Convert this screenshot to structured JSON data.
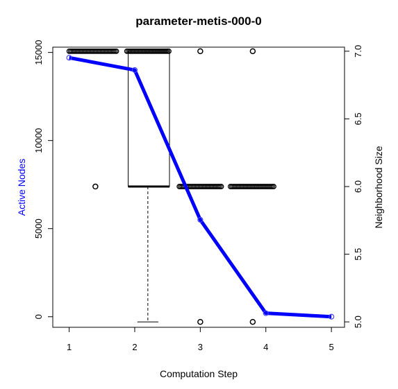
{
  "chart_data": {
    "type": "line",
    "title": "parameter-metis-000-0",
    "xlabel": "Computation Step",
    "ylabel_left": "Active Nodes",
    "ylabel_right": "Neighborhood Size",
    "x_ticks": [
      "1",
      "2",
      "3",
      "4",
      "5"
    ],
    "y_left_ticks": [
      "0",
      "5000",
      "10000",
      "15000"
    ],
    "y_right_ticks": [
      "5.0",
      "5.5",
      "6.0",
      "6.5",
      "7.0"
    ],
    "xlim": [
      0.75,
      5.2
    ],
    "ylim_left": [
      -600,
      15300
    ],
    "ylim_right": [
      4.96,
      7.03
    ],
    "colors": {
      "line": "#0000ff",
      "left_label": "#0000ff",
      "box": "#000000"
    },
    "series": [
      {
        "name": "Active Nodes",
        "axis": "left",
        "x": [
          1,
          2,
          3,
          4,
          5
        ],
        "y": [
          14700,
          14000,
          5500,
          200,
          0
        ]
      }
    ],
    "neighborhood_points": {
      "axis": "right",
      "segments": [
        {
          "x_from": 1.0,
          "x_to": 1.72,
          "y": 7.0
        },
        {
          "x_from": 1.88,
          "x_to": 2.52,
          "y": 7.0
        },
        {
          "x_from": 2.68,
          "x_to": 3.32,
          "y": 6.0
        },
        {
          "x_from": 3.46,
          "x_to": 4.12,
          "y": 6.0
        }
      ],
      "outliers": [
        {
          "x": 1.4,
          "y": 6.0
        },
        {
          "x": 3.0,
          "y": 7.0
        },
        {
          "x": 3.0,
          "y": 5.0
        },
        {
          "x": 3.8,
          "y": 7.0
        },
        {
          "x": 3.8,
          "y": 5.0
        }
      ]
    },
    "boxplot": {
      "axis": "right",
      "x_left": 1.9,
      "x_right": 2.53,
      "whisker_x": 2.2,
      "whisker_cap_half_width": 0.16,
      "min": 5.0,
      "q1": 6.0,
      "median": 6.0,
      "q3": 7.0,
      "max": 7.0
    }
  }
}
